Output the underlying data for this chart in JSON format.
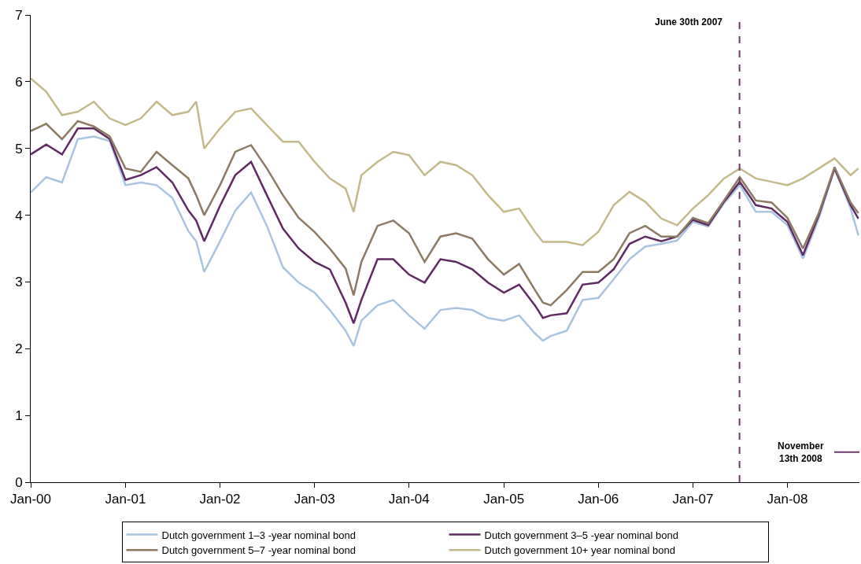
{
  "chart_data": {
    "type": "line",
    "x": [
      "2000-01",
      "2000-03",
      "2000-05",
      "2000-07",
      "2000-09",
      "2000-11",
      "2001-01",
      "2001-03",
      "2001-05",
      "2001-07",
      "2001-09",
      "2001-10",
      "2001-11",
      "2002-01",
      "2002-03",
      "2002-05",
      "2002-07",
      "2002-09",
      "2002-11",
      "2003-01",
      "2003-03",
      "2003-05",
      "2003-06",
      "2003-07",
      "2003-09",
      "2003-11",
      "2004-01",
      "2004-03",
      "2004-05",
      "2004-07",
      "2004-09",
      "2004-11",
      "2005-01",
      "2005-03",
      "2005-05",
      "2005-06",
      "2005-07",
      "2005-09",
      "2005-11",
      "2006-01",
      "2006-03",
      "2006-05",
      "2006-07",
      "2006-09",
      "2006-11",
      "2007-01",
      "2007-03",
      "2007-05",
      "2007-07",
      "2007-09",
      "2007-11",
      "2008-01",
      "2008-03",
      "2008-05",
      "2008-07",
      "2008-09",
      "2008-10"
    ],
    "series": [
      {
        "name": "Dutch government 1–3 -year nominal bond",
        "color": "#a9c4e0",
        "values": [
          4.34,
          4.57,
          4.49,
          5.14,
          5.18,
          5.11,
          4.45,
          4.49,
          4.45,
          4.26,
          3.76,
          3.61,
          3.15,
          3.61,
          4.07,
          4.34,
          3.84,
          3.22,
          2.99,
          2.84,
          2.58,
          2.27,
          2.04,
          2.42,
          2.65,
          2.73,
          2.5,
          2.3,
          2.58,
          2.61,
          2.58,
          2.46,
          2.42,
          2.5,
          2.23,
          2.12,
          2.19,
          2.27,
          2.73,
          2.76,
          3.04,
          3.34,
          3.53,
          3.57,
          3.62,
          3.9,
          3.83,
          4.18,
          4.45,
          4.05,
          4.05,
          3.85,
          3.35,
          3.95,
          4.7,
          4.1,
          3.7
        ]
      },
      {
        "name": "Dutch government 3–5 -year nominal bond",
        "color": "#5f2a62",
        "values": [
          4.91,
          5.06,
          4.91,
          5.3,
          5.3,
          5.14,
          4.53,
          4.6,
          4.72,
          4.49,
          4.07,
          3.92,
          3.61,
          4.14,
          4.6,
          4.8,
          4.3,
          3.8,
          3.5,
          3.3,
          3.19,
          2.69,
          2.38,
          2.73,
          3.34,
          3.34,
          3.11,
          2.99,
          3.34,
          3.3,
          3.19,
          2.99,
          2.84,
          2.96,
          2.65,
          2.46,
          2.5,
          2.53,
          2.96,
          2.99,
          3.19,
          3.57,
          3.68,
          3.61,
          3.68,
          3.93,
          3.85,
          4.2,
          4.5,
          4.15,
          4.1,
          3.9,
          3.4,
          4.0,
          4.7,
          4.15,
          3.95
        ]
      },
      {
        "name": "Dutch government 5–7 -year nominal bond",
        "color": "#8c7a63",
        "values": [
          5.26,
          5.37,
          5.14,
          5.41,
          5.33,
          5.18,
          4.7,
          4.65,
          4.95,
          4.75,
          4.55,
          4.3,
          4.0,
          4.45,
          4.95,
          5.05,
          4.7,
          4.3,
          3.96,
          3.75,
          3.5,
          3.2,
          2.8,
          3.3,
          3.84,
          3.92,
          3.73,
          3.3,
          3.68,
          3.73,
          3.65,
          3.34,
          3.11,
          3.27,
          2.88,
          2.69,
          2.65,
          2.88,
          3.15,
          3.15,
          3.34,
          3.73,
          3.84,
          3.68,
          3.68,
          3.96,
          3.88,
          4.22,
          4.57,
          4.22,
          4.19,
          3.96,
          3.5,
          4.03,
          4.72,
          4.19,
          4.03
        ]
      },
      {
        "name": "Dutch government 10+ year nominal bond",
        "color": "#c4b98a",
        "values": [
          6.05,
          5.85,
          5.5,
          5.55,
          5.7,
          5.45,
          5.35,
          5.45,
          5.7,
          5.5,
          5.55,
          5.7,
          5.0,
          5.3,
          5.55,
          5.6,
          5.35,
          5.1,
          5.1,
          4.8,
          4.55,
          4.4,
          4.05,
          4.6,
          4.8,
          4.95,
          4.9,
          4.6,
          4.8,
          4.75,
          4.6,
          4.3,
          4.05,
          4.1,
          3.75,
          3.6,
          3.6,
          3.6,
          3.55,
          3.75,
          4.15,
          4.35,
          4.2,
          3.95,
          3.85,
          4.1,
          4.3,
          4.55,
          4.7,
          4.55,
          4.5,
          4.45,
          4.55,
          4.7,
          4.85,
          4.6,
          4.7
        ]
      }
    ],
    "xlim": [
      "2000-01-01",
      "2008-10-05"
    ],
    "xticks": [
      {
        "value": "2000-01-01",
        "label": "Jan-00"
      },
      {
        "value": "2001-01-01",
        "label": "Jan-01"
      },
      {
        "value": "2002-01-01",
        "label": "Jan-02"
      },
      {
        "value": "2003-01-01",
        "label": "Jan-03"
      },
      {
        "value": "2004-01-01",
        "label": "Jan-04"
      },
      {
        "value": "2005-01-01",
        "label": "Jan-05"
      },
      {
        "value": "2006-01-01",
        "label": "Jan-06"
      },
      {
        "value": "2007-01-01",
        "label": "Jan-07"
      },
      {
        "value": "2008-01-01",
        "label": "Jan-08"
      }
    ],
    "ylim": [
      0,
      7
    ],
    "yticks": [
      0,
      1,
      2,
      3,
      4,
      5,
      6,
      7
    ],
    "ref_lines": [
      {
        "axis": "x",
        "value": "2007-06-30",
        "label": "June 30th 2007",
        "color": "#6b3a6b",
        "line_style": "dashed"
      }
    ],
    "annotations": [
      "November\n13th 2008"
    ],
    "legend": "bottom",
    "grid": false,
    "marker": "none",
    "line_style": "solid"
  }
}
